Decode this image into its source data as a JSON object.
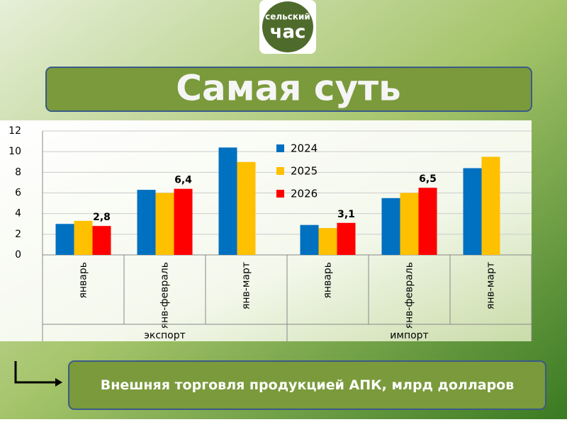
{
  "header": {
    "logo_top": "сельский",
    "logo_main": "час",
    "title": "Самая суть"
  },
  "caption": "Внешняя торговля продукцией АПК, млрд долларов",
  "chart_data": {
    "type": "bar",
    "categories": [
      "январь",
      "янв-февраль",
      "янв-март",
      "январь",
      "янв-февраль",
      "янв-март"
    ],
    "category_groups": [
      "экспорт",
      "импорт"
    ],
    "series": [
      {
        "name": "2024",
        "color": "#0070c0",
        "values": [
          3.0,
          6.3,
          10.4,
          2.9,
          5.5,
          8.4
        ]
      },
      {
        "name": "2025",
        "color": "#ffc000",
        "values": [
          3.3,
          6.0,
          9.0,
          2.6,
          6.0,
          9.5
        ]
      },
      {
        "name": "2026",
        "color": "#ff0000",
        "values": [
          2.8,
          6.4,
          null,
          3.1,
          6.5,
          null
        ],
        "value_labels": [
          "2,8",
          "6,4",
          null,
          "3,1",
          "6,5",
          null
        ]
      }
    ],
    "ylim": [
      0,
      12
    ],
    "yticks": [
      0,
      2,
      4,
      6,
      8,
      10,
      12
    ],
    "grid": true
  }
}
